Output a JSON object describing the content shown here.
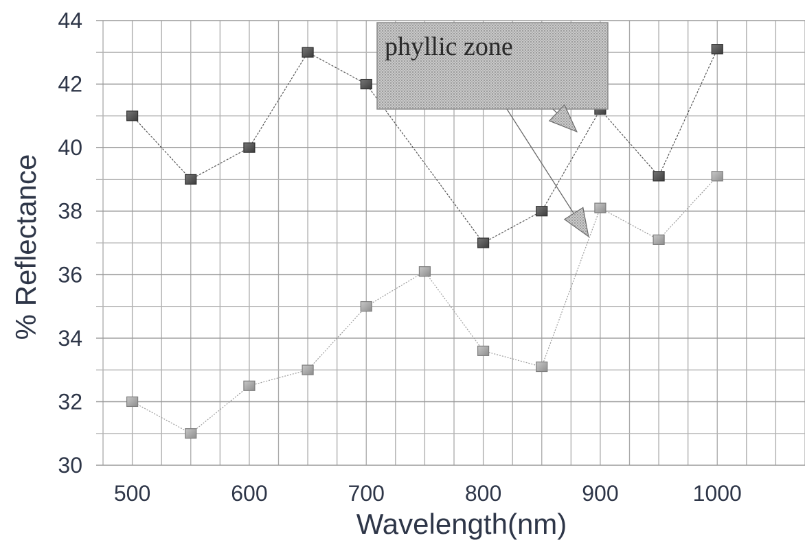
{
  "chart_data": {
    "type": "line",
    "title": "",
    "xlabel": "Wavelength(nm)",
    "ylabel": "% Reflectance",
    "xlim": [
      475,
      1075
    ],
    "ylim": [
      30,
      44
    ],
    "x_ticks": [
      500,
      600,
      700,
      800,
      900,
      1000
    ],
    "y_ticks": [
      30,
      32,
      34,
      36,
      38,
      40,
      42,
      44
    ],
    "grid": true,
    "legend": "none",
    "x": [
      500,
      550,
      600,
      650,
      700,
      750,
      800,
      850,
      900,
      950,
      1000
    ],
    "series": [
      {
        "values": [
          41,
          39,
          40,
          43,
          42,
          null,
          37,
          38,
          41.2,
          39.1,
          43.1
        ],
        "color": "#555555",
        "marker": "square"
      },
      {
        "values": [
          32,
          31,
          32.5,
          33,
          35,
          36.1,
          33.6,
          33.1,
          38.1,
          37.1,
          39.1
        ],
        "color": "#9a9a9a",
        "marker": "square"
      }
    ],
    "annotations": [
      {
        "text": "phyllic zone",
        "style": "callout box with hatched gray fill",
        "arrow_targets": [
          {
            "x": 880,
            "y": 40.5
          },
          {
            "x": 890,
            "y": 37.2
          }
        ]
      }
    ]
  }
}
